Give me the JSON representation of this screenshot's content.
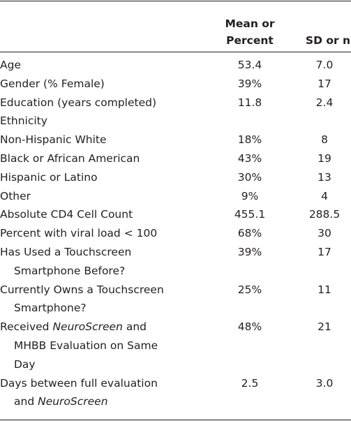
{
  "table": {
    "columns": [
      [
        "Mean or",
        "Percent"
      ],
      [
        "SD or n"
      ]
    ],
    "rows": [
      {
        "label": [
          "Age"
        ],
        "mean": "53.4",
        "sd": "7.0"
      },
      {
        "label": [
          "Gender (% Female)"
        ],
        "mean": "39%",
        "sd": "17"
      },
      {
        "label": [
          "Education (years completed)"
        ],
        "mean": "11.8",
        "sd": "2.4"
      },
      {
        "label": [
          "Ethnicity"
        ]
      },
      {
        "label": [
          "Non-Hispanic White"
        ],
        "mean": "18%",
        "sd": "8"
      },
      {
        "label": [
          "Black or African American"
        ],
        "mean": "43%",
        "sd": "19"
      },
      {
        "label": [
          "Hispanic or Latino"
        ],
        "mean": "30%",
        "sd": "13"
      },
      {
        "label": [
          "Other"
        ],
        "mean": "9%",
        "sd": "4"
      },
      {
        "label": [
          "Absolute CD4 Cell Count"
        ],
        "mean": "455.1",
        "sd": "288.5"
      },
      {
        "label": [
          "Percent with viral load < 100"
        ],
        "mean": "68%",
        "sd": "30"
      },
      {
        "label": [
          "Has Used a Touchscreen",
          "Smartphone Before?"
        ],
        "mean": "39%",
        "sd": "17"
      },
      {
        "label": [
          "Currently Owns a Touchscreen",
          "Smartphone?"
        ],
        "mean": "25%",
        "sd": "11"
      },
      {
        "label": [
          [
            {
              "text": "Received "
            },
            {
              "text": "NeuroScreen",
              "italic": true
            },
            {
              "text": " and"
            }
          ],
          "MHBB Evaluation on Same",
          "Day"
        ],
        "mean": "48%",
        "sd": "21"
      },
      {
        "label": [
          "Days between full evaluation",
          [
            {
              "text": "and "
            },
            {
              "text": "NeuroScreen",
              "italic": true
            }
          ]
        ],
        "mean": "2.5",
        "sd": "3.0"
      }
    ]
  }
}
